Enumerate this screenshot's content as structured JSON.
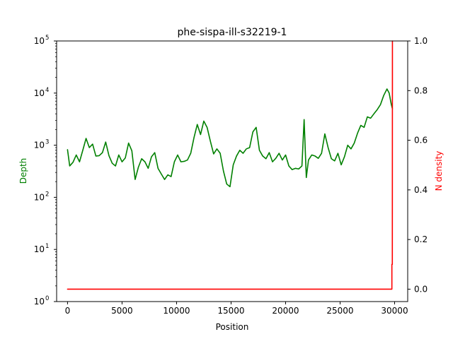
{
  "chart_data": {
    "type": "line",
    "title": "phe-sispa-ill-s32219-1",
    "xlabel": "Position",
    "ylabel_left": "Depth",
    "ylabel_right": "N density",
    "xlim": [
      -1000,
      31200
    ],
    "ylim_left": [
      1,
      100000
    ],
    "ylim_right": [
      -0.05,
      1.0
    ],
    "yscale_left": "log",
    "yscale_right": "linear",
    "grid": false,
    "legend": "none",
    "x_ticks": [
      0,
      5000,
      10000,
      15000,
      20000,
      25000,
      30000
    ],
    "x_tick_labels": [
      "0",
      "5000",
      "10000",
      "15000",
      "20000",
      "25000",
      "30000"
    ],
    "y_left_ticks": [
      {
        "base": "10",
        "exp": "0"
      },
      {
        "base": "10",
        "exp": "1"
      },
      {
        "base": "10",
        "exp": "2"
      },
      {
        "base": "10",
        "exp": "3"
      },
      {
        "base": "10",
        "exp": "4"
      },
      {
        "base": "10",
        "exp": "5"
      }
    ],
    "y_right_ticks": [
      "0.0",
      "0.2",
      "0.4",
      "0.6",
      "0.8",
      "1.0"
    ],
    "series": [
      {
        "axis": "left",
        "color": "#008000",
        "x": [
          0,
          200,
          500,
          800,
          1100,
          1400,
          1700,
          2000,
          2300,
          2600,
          2900,
          3200,
          3500,
          3800,
          4100,
          4400,
          4700,
          5000,
          5300,
          5600,
          5900,
          6200,
          6500,
          6800,
          7100,
          7400,
          7700,
          8000,
          8300,
          8600,
          8900,
          9200,
          9500,
          9800,
          10100,
          10400,
          10700,
          11000,
          11300,
          11600,
          11900,
          12200,
          12500,
          12800,
          13100,
          13400,
          13700,
          14000,
          14300,
          14600,
          14900,
          15200,
          15500,
          15800,
          16100,
          16400,
          16700,
          17000,
          17300,
          17600,
          17900,
          18200,
          18500,
          18800,
          19100,
          19400,
          19700,
          20000,
          20300,
          20600,
          20900,
          21200,
          21500,
          21700,
          21900,
          22100,
          22400,
          22700,
          23000,
          23300,
          23600,
          23900,
          24200,
          24500,
          24800,
          25100,
          25400,
          25700,
          26000,
          26300,
          26600,
          26900,
          27200,
          27500,
          27800,
          28100,
          28400,
          28700,
          29000,
          29300,
          29500,
          29700,
          29800
        ],
        "y": [
          820,
          400,
          470,
          650,
          480,
          800,
          1350,
          900,
          1050,
          620,
          630,
          720,
          1150,
          630,
          450,
          400,
          650,
          480,
          570,
          1100,
          780,
          220,
          380,
          550,
          480,
          360,
          600,
          720,
          360,
          280,
          220,
          270,
          250,
          480,
          650,
          480,
          490,
          520,
          700,
          1400,
          2500,
          1600,
          2900,
          2200,
          1200,
          680,
          850,
          700,
          320,
          180,
          160,
          420,
          620,
          800,
          700,
          850,
          900,
          1800,
          2200,
          800,
          620,
          550,
          720,
          480,
          560,
          700,
          520,
          650,
          400,
          340,
          360,
          350,
          400,
          3100,
          240,
          520,
          650,
          620,
          560,
          700,
          1650,
          900,
          550,
          500,
          700,
          420,
          600,
          1000,
          850,
          1100,
          1700,
          2400,
          2200,
          3500,
          3300,
          4000,
          4800,
          6000,
          9000,
          12000,
          10000,
          6000,
          5000
        ]
      },
      {
        "axis": "right",
        "color": "#ff0000",
        "x": [
          0,
          29750,
          29750,
          29790,
          29800,
          29800
        ],
        "y": [
          0.0,
          0.0,
          0.1,
          0.1,
          1.0,
          0.8
        ]
      }
    ]
  }
}
